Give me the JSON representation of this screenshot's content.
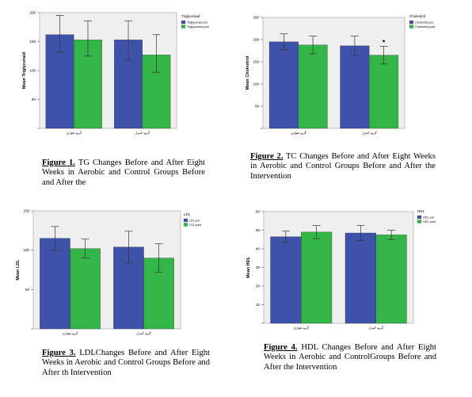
{
  "colors": {
    "pre": "#3d52a8",
    "post": "#34b548",
    "plot_bg": "#efefef"
  },
  "charts": [
    {
      "caption_label": "Figure 1.",
      "caption_text": "TG Changes Before and After Eight Weeks in Aerobic and Control Groups Before and After the",
      "chart_data": {
        "type": "bar",
        "ylabel": "Mean Triglyceraid",
        "categories": [
          "گروه هوازی",
          "گروه کنترل"
        ],
        "ylim": [
          0,
          200
        ],
        "yticks": [
          0,
          50,
          100,
          150,
          200
        ],
        "ytick_labels": [
          "",
          "50",
          "100",
          "150",
          "200"
        ],
        "legend_title": "Triglyceraid",
        "series": [
          {
            "name": "Triglyceraid.pre",
            "values": [
              162,
              153
            ],
            "err_low": [
              30,
              35
            ],
            "err_high": [
              33,
              33
            ]
          },
          {
            "name": "Triglyceraid.post",
            "values": [
              153,
              127
            ],
            "err_low": [
              28,
              30
            ],
            "err_high": [
              33,
              35
            ]
          }
        ],
        "annotations": []
      }
    },
    {
      "caption_label": "Figure 2.",
      "caption_text": "TC Changes Before and After Eight Weeks in Aerobic and Control Groups Before and After the Intervention",
      "chart_data": {
        "type": "bar",
        "ylabel": "Mean Cholestrol",
        "categories": [
          "گروه هوازی",
          "گروه کنترل"
        ],
        "ylim": [
          0,
          250
        ],
        "yticks": [
          0,
          50,
          100,
          150,
          200,
          250
        ],
        "ytick_labels": [
          "",
          "50",
          "100",
          "150",
          "200",
          "250"
        ],
        "legend_title": "Cholestrol",
        "series": [
          {
            "name": "Cholestrol.pre",
            "values": [
              195,
              186
            ],
            "err_low": [
              18,
              22
            ],
            "err_high": [
              18,
              22
            ]
          },
          {
            "name": "Cholestrol.post",
            "values": [
              188,
              165
            ],
            "err_low": [
              20,
              20
            ],
            "err_high": [
              20,
              20
            ]
          }
        ],
        "annotations": [
          {
            "text": "*",
            "category": 1,
            "series": 1
          }
        ]
      }
    },
    {
      "caption_label": "Figure 3.",
      "caption_text": "LDLChanges Before and After Eight Weeks in Aerobic and Control Groups Before and After th Intervention",
      "chart_data": {
        "type": "bar",
        "ylabel": "Mean LDL",
        "categories": [
          "گروه هوازی",
          "گروه کنترل"
        ],
        "ylim": [
          0,
          150
        ],
        "yticks": [
          0,
          50,
          100,
          150
        ],
        "ytick_labels": [
          "",
          "50",
          "100",
          "150"
        ],
        "legend_title": "LDL",
        "series": [
          {
            "name": "LDL.pre",
            "values": [
              115,
              104
            ],
            "err_low": [
              15,
              20
            ],
            "err_high": [
              15,
              20
            ]
          },
          {
            "name": "LDL.post",
            "values": [
              102,
              90
            ],
            "err_low": [
              12,
              18
            ],
            "err_high": [
              12,
              18
            ]
          }
        ],
        "annotations": []
      }
    },
    {
      "caption_label": "Figure 4.",
      "caption_text": "HDL Changes Before and After Eight Weeks in Aerobic and ControlGroups Before and After the Intervention",
      "chart_data": {
        "type": "bar",
        "ylabel": "Mean HDL",
        "categories": [
          "گروه هوازی",
          "گروه کنترل"
        ],
        "ylim": [
          0,
          60
        ],
        "yticks": [
          0,
          10,
          20,
          30,
          40,
          50,
          60
        ],
        "ytick_labels": [
          "",
          "10",
          "20",
          "30",
          "40",
          "50",
          "60"
        ],
        "legend_title": "HDL",
        "series": [
          {
            "name": "HDL.pre",
            "values": [
              46.5,
              48.5
            ],
            "err_low": [
              3,
              4
            ],
            "err_high": [
              3,
              4
            ]
          },
          {
            "name": "HDL.post",
            "values": [
              49,
              47.5
            ],
            "err_low": [
              3.5,
              2.5
            ],
            "err_high": [
              3.5,
              2.5
            ]
          }
        ],
        "annotations": []
      }
    }
  ]
}
